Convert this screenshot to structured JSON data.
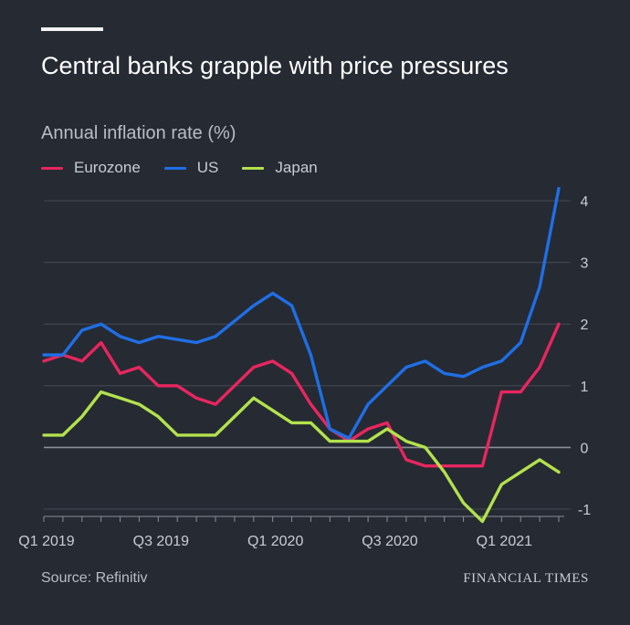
{
  "chart_data": {
    "type": "line",
    "title": "Central banks grapple with price pressures",
    "subtitle": "Annual inflation rate (%)",
    "xlabel": "",
    "ylabel": "Annual inflation rate (%)",
    "ylim": [
      -1,
      4
    ],
    "yticks": [
      -1,
      0,
      1,
      2,
      3,
      4
    ],
    "x": [
      "2019-01",
      "2019-02",
      "2019-03",
      "2019-04",
      "2019-05",
      "2019-06",
      "2019-07",
      "2019-08",
      "2019-09",
      "2019-10",
      "2019-11",
      "2019-12",
      "2020-01",
      "2020-02",
      "2020-03",
      "2020-04",
      "2020-05",
      "2020-06",
      "2020-07",
      "2020-08",
      "2020-09",
      "2020-10",
      "2020-11",
      "2020-12",
      "2021-01",
      "2021-02",
      "2021-03",
      "2021-04"
    ],
    "xtick_labels": [
      {
        "label": "Q1 2019",
        "index": 0
      },
      {
        "label": "Q3 2019",
        "index": 6
      },
      {
        "label": "Q1 2020",
        "index": 12
      },
      {
        "label": "Q3 2020",
        "index": 18
      },
      {
        "label": "Q1 2021",
        "index": 24
      }
    ],
    "series": [
      {
        "name": "Eurozone",
        "color": "#e8265e",
        "values": [
          1.4,
          1.5,
          1.4,
          1.7,
          1.2,
          1.3,
          1.0,
          1.0,
          0.8,
          0.7,
          1.0,
          1.3,
          1.4,
          1.2,
          0.7,
          0.3,
          0.1,
          0.3,
          0.4,
          -0.2,
          -0.3,
          -0.3,
          -0.3,
          -0.3,
          0.9,
          0.9,
          1.3,
          2.0
        ]
      },
      {
        "name": "US",
        "color": "#1f6fe5",
        "values": [
          1.5,
          1.5,
          1.9,
          2.0,
          1.8,
          1.7,
          1.8,
          1.75,
          1.7,
          1.8,
          2.05,
          2.3,
          2.5,
          2.3,
          1.5,
          0.3,
          0.15,
          0.7,
          1.0,
          1.3,
          1.4,
          1.2,
          1.15,
          1.3,
          1.4,
          1.7,
          2.6,
          4.2
        ]
      },
      {
        "name": "Japan",
        "color": "#b2e24d",
        "values": [
          0.2,
          0.2,
          0.5,
          0.9,
          0.8,
          0.7,
          0.5,
          0.2,
          0.2,
          0.2,
          0.5,
          0.8,
          0.6,
          0.4,
          0.4,
          0.1,
          0.1,
          0.1,
          0.3,
          0.1,
          0.0,
          -0.4,
          -0.9,
          -1.2,
          -0.6,
          -0.4,
          -0.2,
          -0.4
        ]
      }
    ]
  },
  "footer": {
    "source": "Source: Refinitiv",
    "brand": "FINANCIAL TIMES"
  }
}
